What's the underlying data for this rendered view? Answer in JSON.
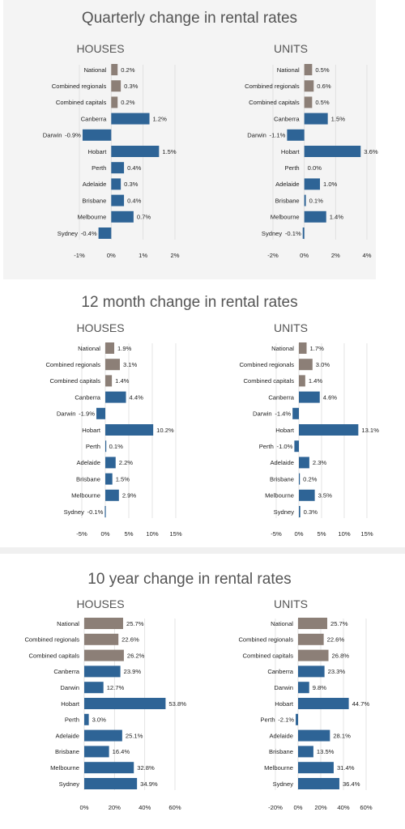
{
  "panels": [
    {
      "title": "Quarterly change in rental rates",
      "suffix": "%",
      "houses_title": "HOUSES",
      "units_title": "UNITS"
    },
    {
      "title": "12 month change in rental rates",
      "suffix": "%",
      "houses_title": "HOUSES",
      "units_title": "UNITS"
    },
    {
      "title": "10 year change in rental rates",
      "suffix": "%",
      "houses_title": "HOUSES",
      "units_title": "UNITS"
    }
  ],
  "colors": {
    "summary": "#8c7f77",
    "city": "#2e6496"
  },
  "chart_data": [
    {
      "type": "bar",
      "orientation": "horizontal",
      "title": "Quarterly change in rental rates",
      "subtitle": "HOUSES",
      "categories": [
        "National",
        "Combined regionals",
        "Combined capitals",
        "Canberra",
        "Darwin",
        "Hobart",
        "Perth",
        "Adelaide",
        "Brisbane",
        "Melbourne",
        "Sydney"
      ],
      "values": [
        0.2,
        0.3,
        0.2,
        1.2,
        -0.9,
        1.5,
        0.4,
        0.3,
        0.4,
        0.7,
        -0.4
      ],
      "value_labels": [
        "0.2%",
        "0.3%",
        "0.2%",
        "1.2%",
        "-0.9%",
        "1.5%",
        "0.4%",
        "0.3%",
        "0.4%",
        "0.7%",
        "-0.4%"
      ],
      "summary_count": 3,
      "xlim": [
        -1,
        2
      ],
      "ticks": [
        -1,
        0,
        1,
        2
      ],
      "tick_labels": [
        "-1%",
        "0%",
        "1%",
        "2%"
      ],
      "grid": true
    },
    {
      "type": "bar",
      "orientation": "horizontal",
      "title": "Quarterly change in rental rates",
      "subtitle": "UNITS",
      "categories": [
        "National",
        "Combined regionals",
        "Combined capitals",
        "Canberra",
        "Darwin",
        "Hobart",
        "Perth",
        "Adelaide",
        "Brisbane",
        "Melbourne",
        "Sydney"
      ],
      "values": [
        0.5,
        0.6,
        0.5,
        1.5,
        -1.1,
        3.6,
        0.0,
        1.0,
        0.1,
        1.4,
        -0.1
      ],
      "value_labels": [
        "0.5%",
        "0.6%",
        "0.5%",
        "1.5%",
        "-1.1%",
        "3.6%",
        "0.0%",
        "1.0%",
        "0.1%",
        "1.4%",
        "-0.1%"
      ],
      "summary_count": 3,
      "xlim": [
        -2,
        4
      ],
      "ticks": [
        -2,
        0,
        2,
        4
      ],
      "tick_labels": [
        "-2%",
        "0%",
        "2%",
        "4%"
      ],
      "grid": true
    },
    {
      "type": "bar",
      "orientation": "horizontal",
      "title": "12 month change in rental rates",
      "subtitle": "HOUSES",
      "categories": [
        "National",
        "Combined regionals",
        "Combined capitals",
        "Canberra",
        "Darwin",
        "Hobart",
        "Perth",
        "Adelaide",
        "Brisbane",
        "Melbourne",
        "Sydney"
      ],
      "values": [
        1.9,
        3.1,
        1.4,
        4.4,
        -1.9,
        10.2,
        0.1,
        2.2,
        1.5,
        2.9,
        -0.1
      ],
      "value_labels": [
        "1.9%",
        "3.1%",
        "1.4%",
        "4.4%",
        "-1.9%",
        "10.2%",
        "0.1%",
        "2.2%",
        "1.5%",
        "2.9%",
        "-0.1%"
      ],
      "summary_count": 3,
      "xlim": [
        -5,
        15
      ],
      "ticks": [
        -5,
        0,
        5,
        10,
        15
      ],
      "tick_labels": [
        "-5%",
        "0%",
        "5%",
        "10%",
        "15%"
      ],
      "grid": true
    },
    {
      "type": "bar",
      "orientation": "horizontal",
      "title": "12 month change in rental rates",
      "subtitle": "UNITS",
      "categories": [
        "National",
        "Combined regionals",
        "Combined capitals",
        "Canberra",
        "Darwin",
        "Hobart",
        "Perth",
        "Adelaide",
        "Brisbane",
        "Melbourne",
        "Sydney"
      ],
      "values": [
        1.7,
        3.0,
        1.4,
        4.6,
        -1.4,
        13.1,
        -1.0,
        2.3,
        0.2,
        3.5,
        0.3
      ],
      "value_labels": [
        "1.7%",
        "3.0%",
        "1.4%",
        "4.6%",
        "-1.4%",
        "13.1%",
        "-1.0%",
        "2.3%",
        "0.2%",
        "3.5%",
        "0.3%"
      ],
      "summary_count": 3,
      "xlim": [
        -5,
        15
      ],
      "ticks": [
        -5,
        0,
        5,
        10,
        15
      ],
      "tick_labels": [
        "-5%",
        "0%",
        "5%",
        "10%",
        "15%"
      ],
      "grid": true
    },
    {
      "type": "bar",
      "orientation": "horizontal",
      "title": "10 year change in rental rates",
      "subtitle": "HOUSES",
      "categories": [
        "National",
        "Combined regionals",
        "Combined capitals",
        "Canberra",
        "Darwin",
        "Hobart",
        "Perth",
        "Adelaide",
        "Brisbane",
        "Melbourne",
        "Sydney"
      ],
      "values": [
        25.7,
        22.6,
        26.2,
        23.9,
        12.7,
        53.8,
        3.0,
        25.1,
        16.4,
        32.8,
        34.9
      ],
      "value_labels": [
        "25.7%",
        "22.6%",
        "26.2%",
        "23.9%",
        "12.7%",
        "53.8%",
        "3.0%",
        "25.1%",
        "16.4%",
        "32.8%",
        "34.9%"
      ],
      "summary_count": 3,
      "xlim": [
        0,
        60
      ],
      "ticks": [
        0,
        20,
        40,
        60
      ],
      "tick_labels": [
        "0%",
        "20%",
        "40%",
        "60%"
      ],
      "grid": true
    },
    {
      "type": "bar",
      "orientation": "horizontal",
      "title": "10 year change in rental rates",
      "subtitle": "UNITS",
      "categories": [
        "National",
        "Combined regionals",
        "Combined capitals",
        "Canberra",
        "Darwin",
        "Hobart",
        "Perth",
        "Adelaide",
        "Brisbane",
        "Melbourne",
        "Sydney"
      ],
      "values": [
        25.7,
        22.6,
        26.8,
        23.3,
        9.8,
        44.7,
        -2.1,
        28.1,
        13.5,
        31.4,
        36.4
      ],
      "value_labels": [
        "25.7%",
        "22.6%",
        "26.8%",
        "23.3%",
        "9.8%",
        "44.7%",
        "-2.1%",
        "28.1%",
        "13.5%",
        "31.4%",
        "36.4%"
      ],
      "summary_count": 3,
      "xlim": [
        -20,
        60
      ],
      "ticks": [
        -20,
        0,
        20,
        40,
        60
      ],
      "tick_labels": [
        "-20%",
        "0%",
        "20%",
        "40%",
        "60%"
      ],
      "grid": true
    }
  ]
}
